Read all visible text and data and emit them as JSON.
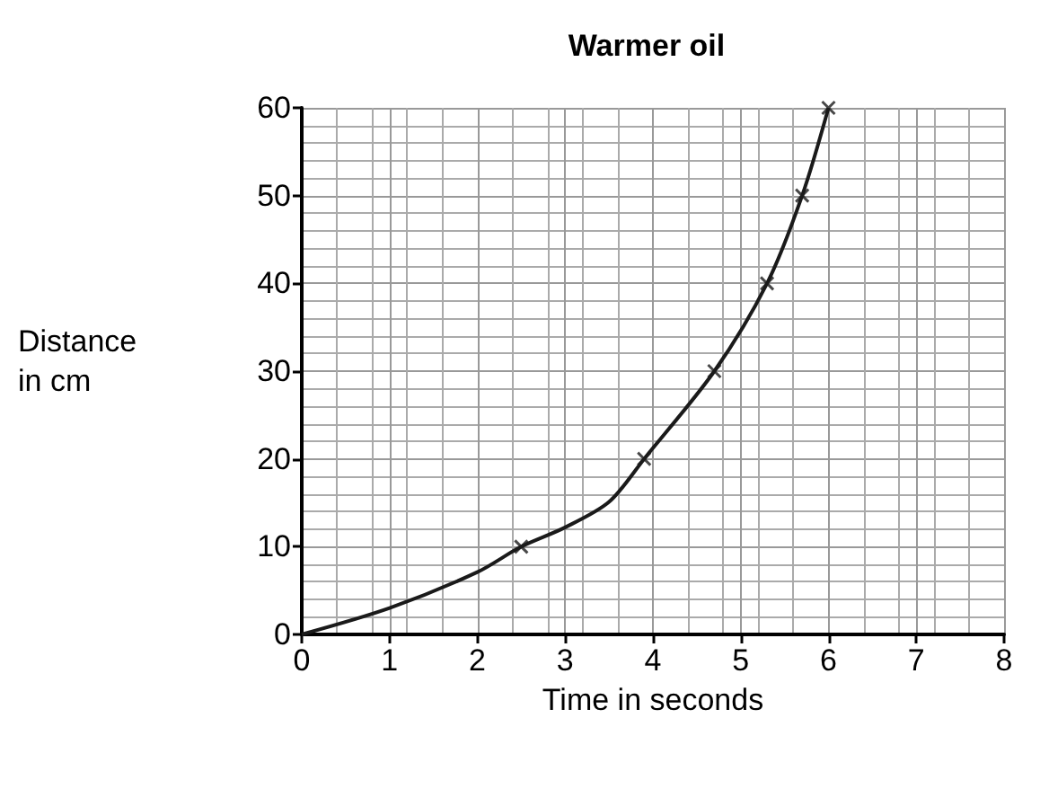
{
  "chart_data": {
    "type": "line",
    "title": "Warmer oil",
    "xlabel": "Time in seconds",
    "ylabel": "Distance\nin cm",
    "xlim": [
      0,
      8
    ],
    "ylim": [
      0,
      60
    ],
    "xticks": [
      0,
      1,
      2,
      3,
      4,
      5,
      6,
      7,
      8
    ],
    "yticks": [
      0,
      10,
      20,
      30,
      40,
      50,
      60
    ],
    "grid": true,
    "series": [
      {
        "color": "#1a1a1a",
        "marker": "none",
        "x": [
          0,
          1,
          2,
          2.5,
          3,
          3.5,
          3.9,
          4.7,
          5.3,
          5.7,
          6
        ],
        "values": [
          0,
          3,
          7.1,
          10,
          12.2,
          15.1,
          20,
          30,
          40,
          50,
          60
        ]
      },
      {
        "type": "scatter",
        "color": "#1a1a1a",
        "marker": "cross",
        "x": [
          2.5,
          3.9,
          4.7,
          5.3,
          5.7,
          6
        ],
        "values": [
          10,
          20,
          30,
          40,
          50,
          60
        ]
      }
    ]
  }
}
